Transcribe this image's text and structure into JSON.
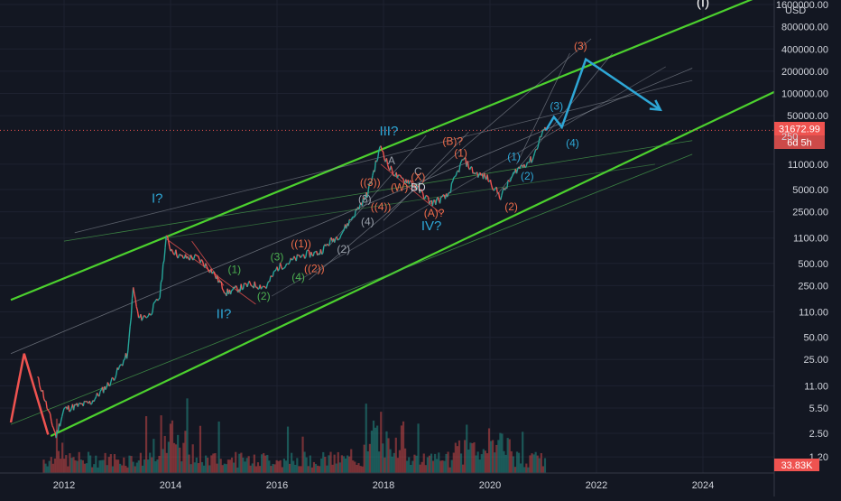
{
  "chart_data": {
    "type": "line",
    "title": "",
    "scale": "log",
    "grid": true,
    "currency": "USD",
    "xlim": [
      2011.0,
      2025.4
    ],
    "ylim": [
      0.9,
      2500000
    ],
    "price_ticks": [
      {
        "value": 1600000,
        "label": "1600000.00"
      },
      {
        "value": 800000,
        "label": "800000.00"
      },
      {
        "value": 400000,
        "label": "400000.00"
      },
      {
        "value": 200000,
        "label": "200000.00"
      },
      {
        "value": 100000,
        "label": "100000.00"
      },
      {
        "value": 50000,
        "label": "50000.00"
      },
      {
        "value": 11000,
        "label": "11000.00"
      },
      {
        "value": 5000,
        "label": "5000.00"
      },
      {
        "value": 2500,
        "label": "2500.00"
      },
      {
        "value": 1100,
        "label": "1100.00"
      },
      {
        "value": 500,
        "label": "500.00"
      },
      {
        "value": 250,
        "label": "250.00"
      },
      {
        "value": 110,
        "label": "110.00"
      },
      {
        "value": 50,
        "label": "50.00"
      },
      {
        "value": 25,
        "label": "25.00"
      },
      {
        "value": 11,
        "label": "11.00"
      },
      {
        "value": 5.5,
        "label": "5.50"
      },
      {
        "value": 2.5,
        "label": "2.50"
      },
      {
        "value": 1.2,
        "label": "1.20"
      }
    ],
    "partial_tick_label": "250",
    "x_ticks": [
      {
        "value": 2012,
        "label": "2012"
      },
      {
        "value": 2014,
        "label": "2014"
      },
      {
        "value": 2016,
        "label": "2016"
      },
      {
        "value": 2018,
        "label": "2018"
      },
      {
        "value": 2020,
        "label": "2020"
      },
      {
        "value": 2022,
        "label": "2022"
      },
      {
        "value": 2024,
        "label": "2024"
      }
    ],
    "last_price": {
      "value": 31672.99,
      "label": "31672.99",
      "countdown": "6d 5h"
    },
    "volume_label": "33.83K",
    "series": [
      {
        "name": "price",
        "color": "#26a69a",
        "points": [
          [
            2011.5,
            14
          ],
          [
            2011.6,
            9
          ],
          [
            2011.7,
            5
          ],
          [
            2011.8,
            3
          ],
          [
            2011.85,
            2.3
          ],
          [
            2012.0,
            5.3
          ],
          [
            2012.5,
            6.5
          ],
          [
            2012.9,
            13
          ],
          [
            2013.2,
            30
          ],
          [
            2013.3,
            230
          ],
          [
            2013.4,
            90
          ],
          [
            2013.6,
            100
          ],
          [
            2013.8,
            180
          ],
          [
            2013.92,
            1150
          ],
          [
            2014.0,
            800
          ],
          [
            2014.2,
            600
          ],
          [
            2014.5,
            600
          ],
          [
            2014.8,
            380
          ],
          [
            2015.05,
            200
          ],
          [
            2015.5,
            260
          ],
          [
            2015.8,
            240
          ],
          [
            2016.0,
            430
          ],
          [
            2016.5,
            650
          ],
          [
            2016.8,
            700
          ],
          [
            2017.0,
            980
          ],
          [
            2017.2,
            1250
          ],
          [
            2017.5,
            2600
          ],
          [
            2017.7,
            4400
          ],
          [
            2017.95,
            19500
          ],
          [
            2018.1,
            10000
          ],
          [
            2018.3,
            7000
          ],
          [
            2018.5,
            6500
          ],
          [
            2018.9,
            3300
          ],
          [
            2019.2,
            4000
          ],
          [
            2019.5,
            13000
          ],
          [
            2019.7,
            8500
          ],
          [
            2019.95,
            7200
          ],
          [
            2020.2,
            4000
          ],
          [
            2020.5,
            9300
          ],
          [
            2020.8,
            13000
          ],
          [
            2021.0,
            32000
          ],
          [
            2021.05,
            31673
          ]
        ]
      }
    ],
    "projection": {
      "color": "#2ea7d6",
      "points": [
        [
          2021.05,
          31673
        ],
        [
          2021.2,
          48000
        ],
        [
          2021.35,
          35000
        ],
        [
          2021.8,
          290000
        ],
        [
          2023.2,
          60000
        ]
      ]
    },
    "wave_labels": [
      {
        "text": "(I)",
        "x": 2024.0,
        "y": 1500000,
        "color": "#ffffff",
        "size": "big"
      },
      {
        "text": "(3)",
        "x": 2021.7,
        "y": 390000,
        "color": "#ef6c4a"
      },
      {
        "text": "(3)",
        "x": 2021.25,
        "y": 60000,
        "color": "#2ea7d6"
      },
      {
        "text": "(4)",
        "x": 2021.55,
        "y": 19000,
        "color": "#2ea7d6"
      },
      {
        "text": "(1)",
        "x": 2020.45,
        "y": 12500,
        "color": "#2ea7d6"
      },
      {
        "text": "(2)",
        "x": 2020.7,
        "y": 6800,
        "color": "#2ea7d6"
      },
      {
        "text": "(2)",
        "x": 2020.4,
        "y": 2600,
        "color": "#ef6c4a"
      },
      {
        "text": "(B)?",
        "x": 2019.3,
        "y": 20000,
        "color": "#ef6c4a"
      },
      {
        "text": "(1)",
        "x": 2019.45,
        "y": 14000,
        "color": "#ef6c4a"
      },
      {
        "text": "(A)?",
        "x": 2018.95,
        "y": 2150,
        "color": "#ef6c4a"
      },
      {
        "text": "IV?",
        "x": 2018.9,
        "y": 1400,
        "color": "#2ea7d6",
        "size": "big"
      },
      {
        "text": "III?",
        "x": 2018.1,
        "y": 27000,
        "color": "#2ea7d6",
        "size": "big"
      },
      {
        "text": "A",
        "x": 2018.15,
        "y": 11000,
        "color": "#9aa0aa"
      },
      {
        "text": "C",
        "x": 2018.65,
        "y": 7800,
        "color": "#9aa0aa"
      },
      {
        "text": "BD",
        "x": 2018.65,
        "y": 4800,
        "color": "#d1d4dc"
      },
      {
        "text": "(W)",
        "x": 2018.3,
        "y": 4800,
        "color": "#ef6c4a"
      },
      {
        "text": "(X)",
        "x": 2018.65,
        "y": 6600,
        "color": "#ef6c4a"
      },
      {
        "text": "((3))",
        "x": 2017.75,
        "y": 5600,
        "color": "#ef6c4a"
      },
      {
        "text": "((4))",
        "x": 2017.95,
        "y": 2600,
        "color": "#ef6c4a"
      },
      {
        "text": "(3)",
        "x": 2017.65,
        "y": 3300,
        "color": "#9aa0aa"
      },
      {
        "text": "(4)",
        "x": 2017.7,
        "y": 1650,
        "color": "#9aa0aa"
      },
      {
        "text": "((1))",
        "x": 2016.45,
        "y": 820,
        "color": "#ef6c4a"
      },
      {
        "text": "((2))",
        "x": 2016.7,
        "y": 380,
        "color": "#ef6c4a"
      },
      {
        "text": "(2)",
        "x": 2017.25,
        "y": 700,
        "color": "#9aa0aa"
      },
      {
        "text": "(3)",
        "x": 2016.0,
        "y": 550,
        "color": "#4caf50"
      },
      {
        "text": "(4)",
        "x": 2016.4,
        "y": 290,
        "color": "#4caf50"
      },
      {
        "text": "(1)",
        "x": 2015.2,
        "y": 370,
        "color": "#4caf50"
      },
      {
        "text": "(2)",
        "x": 2015.75,
        "y": 160,
        "color": "#4caf50"
      },
      {
        "text": "I?",
        "x": 2013.75,
        "y": 3300,
        "color": "#2ea7d6",
        "size": "big"
      },
      {
        "text": "II?",
        "x": 2015.0,
        "y": 90,
        "color": "#2ea7d6",
        "size": "big"
      }
    ]
  }
}
